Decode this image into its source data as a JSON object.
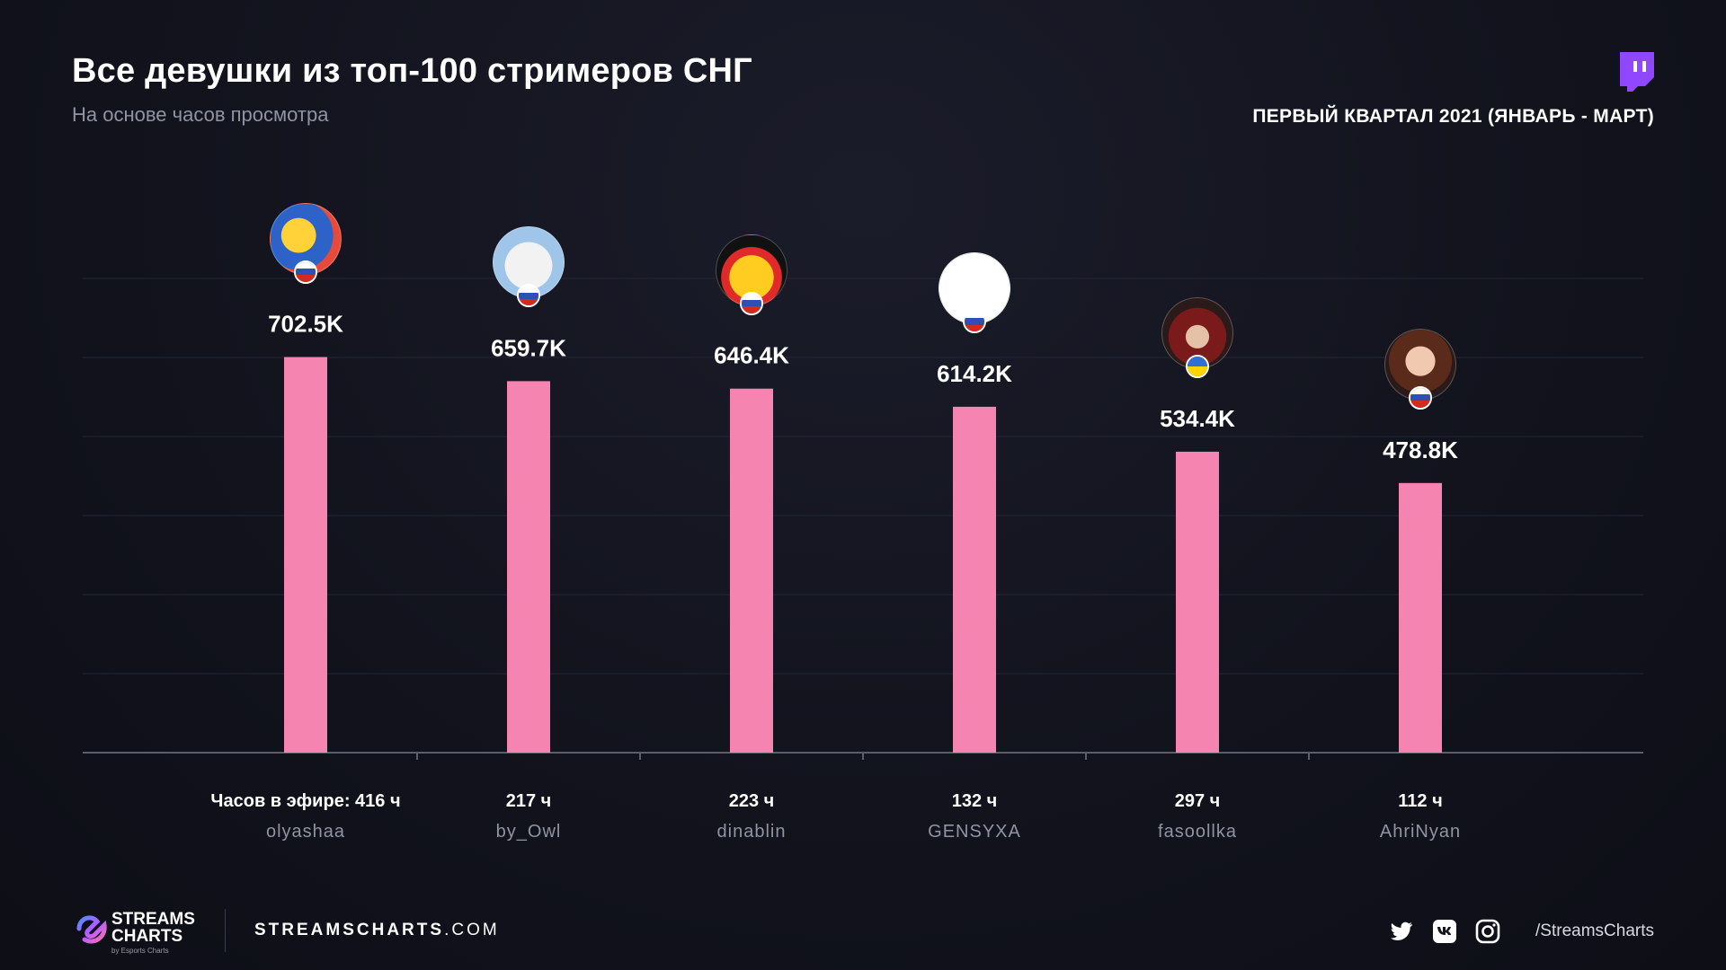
{
  "header": {
    "title": "Все девушки из топ-100 стримеров СНГ",
    "subtitle": "На основе часов просмотра",
    "period": "ПЕРВЫЙ КВАРТАЛ 2021 (ЯНВАРЬ - МАРТ)"
  },
  "footer": {
    "brand_line1": "STREAMS",
    "brand_line2": "CHARTS",
    "brand_sub": "by Esports Charts",
    "site_bold": "STREAMSCHARTS",
    "site_rest": ".COM",
    "handle": "/StreamsCharts"
  },
  "colors": {
    "bar": "#f585b0",
    "axis": "#5a5d6e",
    "grid": "#23253a"
  },
  "chart_data": {
    "type": "bar",
    "title": "Все девушки из топ-100 стримеров СНГ",
    "subtitle": "На основе часов просмотра",
    "ylim": [
      0,
      800000
    ],
    "categories": [
      "olyashaa",
      "by_Owl",
      "dinablin",
      "GENSYXA",
      "fasoollka",
      "AhriNyan"
    ],
    "values": [
      702500,
      659700,
      646400,
      614200,
      534400,
      478800
    ],
    "value_labels": [
      "702.5K",
      "659.7K",
      "646.4K",
      "614.2K",
      "534.4K",
      "478.8K"
    ],
    "airtime_labels": [
      "Часов в эфире: 416 ч",
      "217 ч",
      "223 ч",
      "132 ч",
      "297 ч",
      "112 ч"
    ],
    "countries": [
      "ru",
      "ru",
      "ru",
      "ru",
      "ua",
      "ru"
    ]
  }
}
